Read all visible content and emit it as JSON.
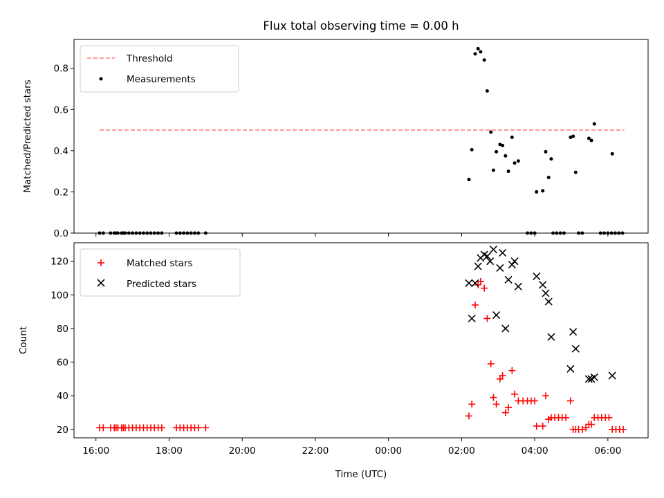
{
  "chart_data": [
    {
      "type": "scatter",
      "title": "Flux total observing time = 0.00 h",
      "ylabel": "Matched/Predicted stars",
      "ylim": [
        0,
        0.94
      ],
      "yticks": [
        0.0,
        0.2,
        0.4,
        0.6,
        0.8
      ],
      "ytick_labels": [
        "0.0",
        "0.2",
        "0.4",
        "0.6",
        "0.8"
      ],
      "xlim_hours": [
        15.4,
        31.1
      ],
      "legend": {
        "position": "top-left",
        "entries": [
          "Threshold",
          "Measurements"
        ]
      },
      "threshold": {
        "name": "Threshold",
        "value": 0.5,
        "x_start_hours": 16.1,
        "x_end_hours": 30.45,
        "color": "#ff7f7f",
        "style": "dashed"
      },
      "series": [
        {
          "name": "Measurements",
          "color": "#000000",
          "marker": "dot",
          "points": [
            [
              16.1,
              0
            ],
            [
              16.2,
              0
            ],
            [
              16.4,
              0
            ],
            [
              16.5,
              0
            ],
            [
              16.55,
              0
            ],
            [
              16.6,
              0
            ],
            [
              16.7,
              0
            ],
            [
              16.75,
              0
            ],
            [
              16.8,
              0
            ],
            [
              16.9,
              0
            ],
            [
              17.0,
              0
            ],
            [
              17.1,
              0
            ],
            [
              17.2,
              0
            ],
            [
              17.3,
              0
            ],
            [
              17.4,
              0
            ],
            [
              17.5,
              0
            ],
            [
              17.6,
              0
            ],
            [
              17.7,
              0
            ],
            [
              17.8,
              0
            ],
            [
              18.2,
              0
            ],
            [
              18.3,
              0
            ],
            [
              18.4,
              0
            ],
            [
              18.5,
              0
            ],
            [
              18.6,
              0
            ],
            [
              18.7,
              0
            ],
            [
              18.8,
              0
            ],
            [
              19.0,
              0
            ],
            [
              26.2,
              0.26
            ],
            [
              26.28,
              0.405
            ],
            [
              26.37,
              0.87
            ],
            [
              26.45,
              0.895
            ],
            [
              26.52,
              0.88
            ],
            [
              26.62,
              0.84
            ],
            [
              26.7,
              0.69
            ],
            [
              26.8,
              0.49
            ],
            [
              26.87,
              0.305
            ],
            [
              26.95,
              0.395
            ],
            [
              27.05,
              0.43
            ],
            [
              27.12,
              0.425
            ],
            [
              27.2,
              0.375
            ],
            [
              27.28,
              0.3
            ],
            [
              27.38,
              0.465
            ],
            [
              27.45,
              0.34
            ],
            [
              27.55,
              0.35
            ],
            [
              28.05,
              0.2
            ],
            [
              28.22,
              0.205
            ],
            [
              28.3,
              0.395
            ],
            [
              28.38,
              0.27
            ],
            [
              28.45,
              0.36
            ],
            [
              28.98,
              0.465
            ],
            [
              29.05,
              0.47
            ],
            [
              29.12,
              0.295
            ],
            [
              29.48,
              0.46
            ],
            [
              29.55,
              0.45
            ],
            [
              29.63,
              0.53
            ],
            [
              30.12,
              0.385
            ],
            [
              27.8,
              0
            ],
            [
              27.9,
              0
            ],
            [
              28.0,
              0
            ],
            [
              28.5,
              0
            ],
            [
              28.6,
              0
            ],
            [
              28.7,
              0
            ],
            [
              28.8,
              0
            ],
            [
              29.2,
              0
            ],
            [
              29.3,
              0
            ],
            [
              29.8,
              0
            ],
            [
              29.9,
              0
            ],
            [
              30.0,
              0
            ],
            [
              30.1,
              0
            ],
            [
              30.2,
              0
            ],
            [
              30.3,
              0
            ],
            [
              30.4,
              0
            ]
          ]
        }
      ]
    },
    {
      "type": "scatter",
      "xlabel": "Time (UTC)",
      "ylabel": "Count",
      "ylim": [
        15,
        131
      ],
      "yticks": [
        20,
        40,
        60,
        80,
        100,
        120
      ],
      "ytick_labels": [
        "20",
        "40",
        "60",
        "80",
        "100",
        "120"
      ],
      "xlim_hours": [
        15.4,
        31.1
      ],
      "xticks_hours": [
        16,
        18,
        20,
        22,
        24,
        26,
        28,
        30
      ],
      "xtick_labels": [
        "16:00",
        "18:00",
        "20:00",
        "22:00",
        "00:00",
        "02:00",
        "04:00",
        "06:00"
      ],
      "legend": {
        "position": "top-left",
        "entries": [
          "Matched stars",
          "Predicted stars"
        ]
      },
      "series": [
        {
          "name": "Matched stars",
          "color": "#ff0000",
          "marker": "plus",
          "points": [
            [
              16.1,
              21
            ],
            [
              16.2,
              21
            ],
            [
              16.4,
              21
            ],
            [
              16.5,
              21
            ],
            [
              16.55,
              21
            ],
            [
              16.6,
              21
            ],
            [
              16.7,
              21
            ],
            [
              16.75,
              21
            ],
            [
              16.8,
              21
            ],
            [
              16.9,
              21
            ],
            [
              17.0,
              21
            ],
            [
              17.1,
              21
            ],
            [
              17.2,
              21
            ],
            [
              17.3,
              21
            ],
            [
              17.4,
              21
            ],
            [
              17.5,
              21
            ],
            [
              17.6,
              21
            ],
            [
              17.7,
              21
            ],
            [
              17.8,
              21
            ],
            [
              18.2,
              21
            ],
            [
              18.3,
              21
            ],
            [
              18.4,
              21
            ],
            [
              18.5,
              21
            ],
            [
              18.6,
              21
            ],
            [
              18.7,
              21
            ],
            [
              18.8,
              21
            ],
            [
              19.0,
              21
            ],
            [
              26.2,
              28
            ],
            [
              26.28,
              35
            ],
            [
              26.37,
              94
            ],
            [
              26.45,
              106
            ],
            [
              26.52,
              108
            ],
            [
              26.62,
              104
            ],
            [
              26.7,
              86
            ],
            [
              26.8,
              59
            ],
            [
              26.87,
              39
            ],
            [
              26.95,
              35
            ],
            [
              27.05,
              50
            ],
            [
              27.12,
              52
            ],
            [
              27.2,
              30
            ],
            [
              27.28,
              33
            ],
            [
              27.38,
              55
            ],
            [
              27.45,
              41
            ],
            [
              27.55,
              37
            ],
            [
              27.68,
              37
            ],
            [
              27.8,
              37
            ],
            [
              27.9,
              37
            ],
            [
              28.0,
              37
            ],
            [
              28.05,
              22
            ],
            [
              28.22,
              22
            ],
            [
              28.3,
              40
            ],
            [
              28.38,
              26
            ],
            [
              28.45,
              27
            ],
            [
              28.55,
              27
            ],
            [
              28.65,
              27
            ],
            [
              28.75,
              27
            ],
            [
              28.85,
              27
            ],
            [
              28.98,
              37
            ],
            [
              29.05,
              20
            ],
            [
              29.12,
              20
            ],
            [
              29.2,
              20
            ],
            [
              29.3,
              20
            ],
            [
              29.4,
              21
            ],
            [
              29.48,
              23
            ],
            [
              29.55,
              23
            ],
            [
              29.63,
              27
            ],
            [
              29.73,
              27
            ],
            [
              29.83,
              27
            ],
            [
              29.93,
              27
            ],
            [
              30.03,
              27
            ],
            [
              30.12,
              20
            ],
            [
              30.22,
              20
            ],
            [
              30.32,
              20
            ],
            [
              30.42,
              20
            ]
          ]
        },
        {
          "name": "Predicted stars",
          "color": "#000000",
          "marker": "x",
          "points": [
            [
              26.2,
              107
            ],
            [
              26.28,
              86
            ],
            [
              26.37,
              107
            ],
            [
              26.45,
              117
            ],
            [
              26.52,
              122
            ],
            [
              26.62,
              124
            ],
            [
              26.7,
              123
            ],
            [
              26.78,
              120
            ],
            [
              26.87,
              127
            ],
            [
              26.95,
              88
            ],
            [
              27.05,
              116
            ],
            [
              27.12,
              125
            ],
            [
              27.2,
              80
            ],
            [
              27.28,
              109
            ],
            [
              27.38,
              118
            ],
            [
              27.45,
              120
            ],
            [
              27.55,
              105
            ],
            [
              28.05,
              111
            ],
            [
              28.22,
              106
            ],
            [
              28.3,
              101
            ],
            [
              28.38,
              96
            ],
            [
              28.45,
              75
            ],
            [
              28.98,
              56
            ],
            [
              29.05,
              78
            ],
            [
              29.12,
              68
            ],
            [
              29.48,
              50
            ],
            [
              29.55,
              50
            ],
            [
              29.63,
              51
            ],
            [
              30.12,
              52
            ]
          ]
        }
      ]
    }
  ]
}
